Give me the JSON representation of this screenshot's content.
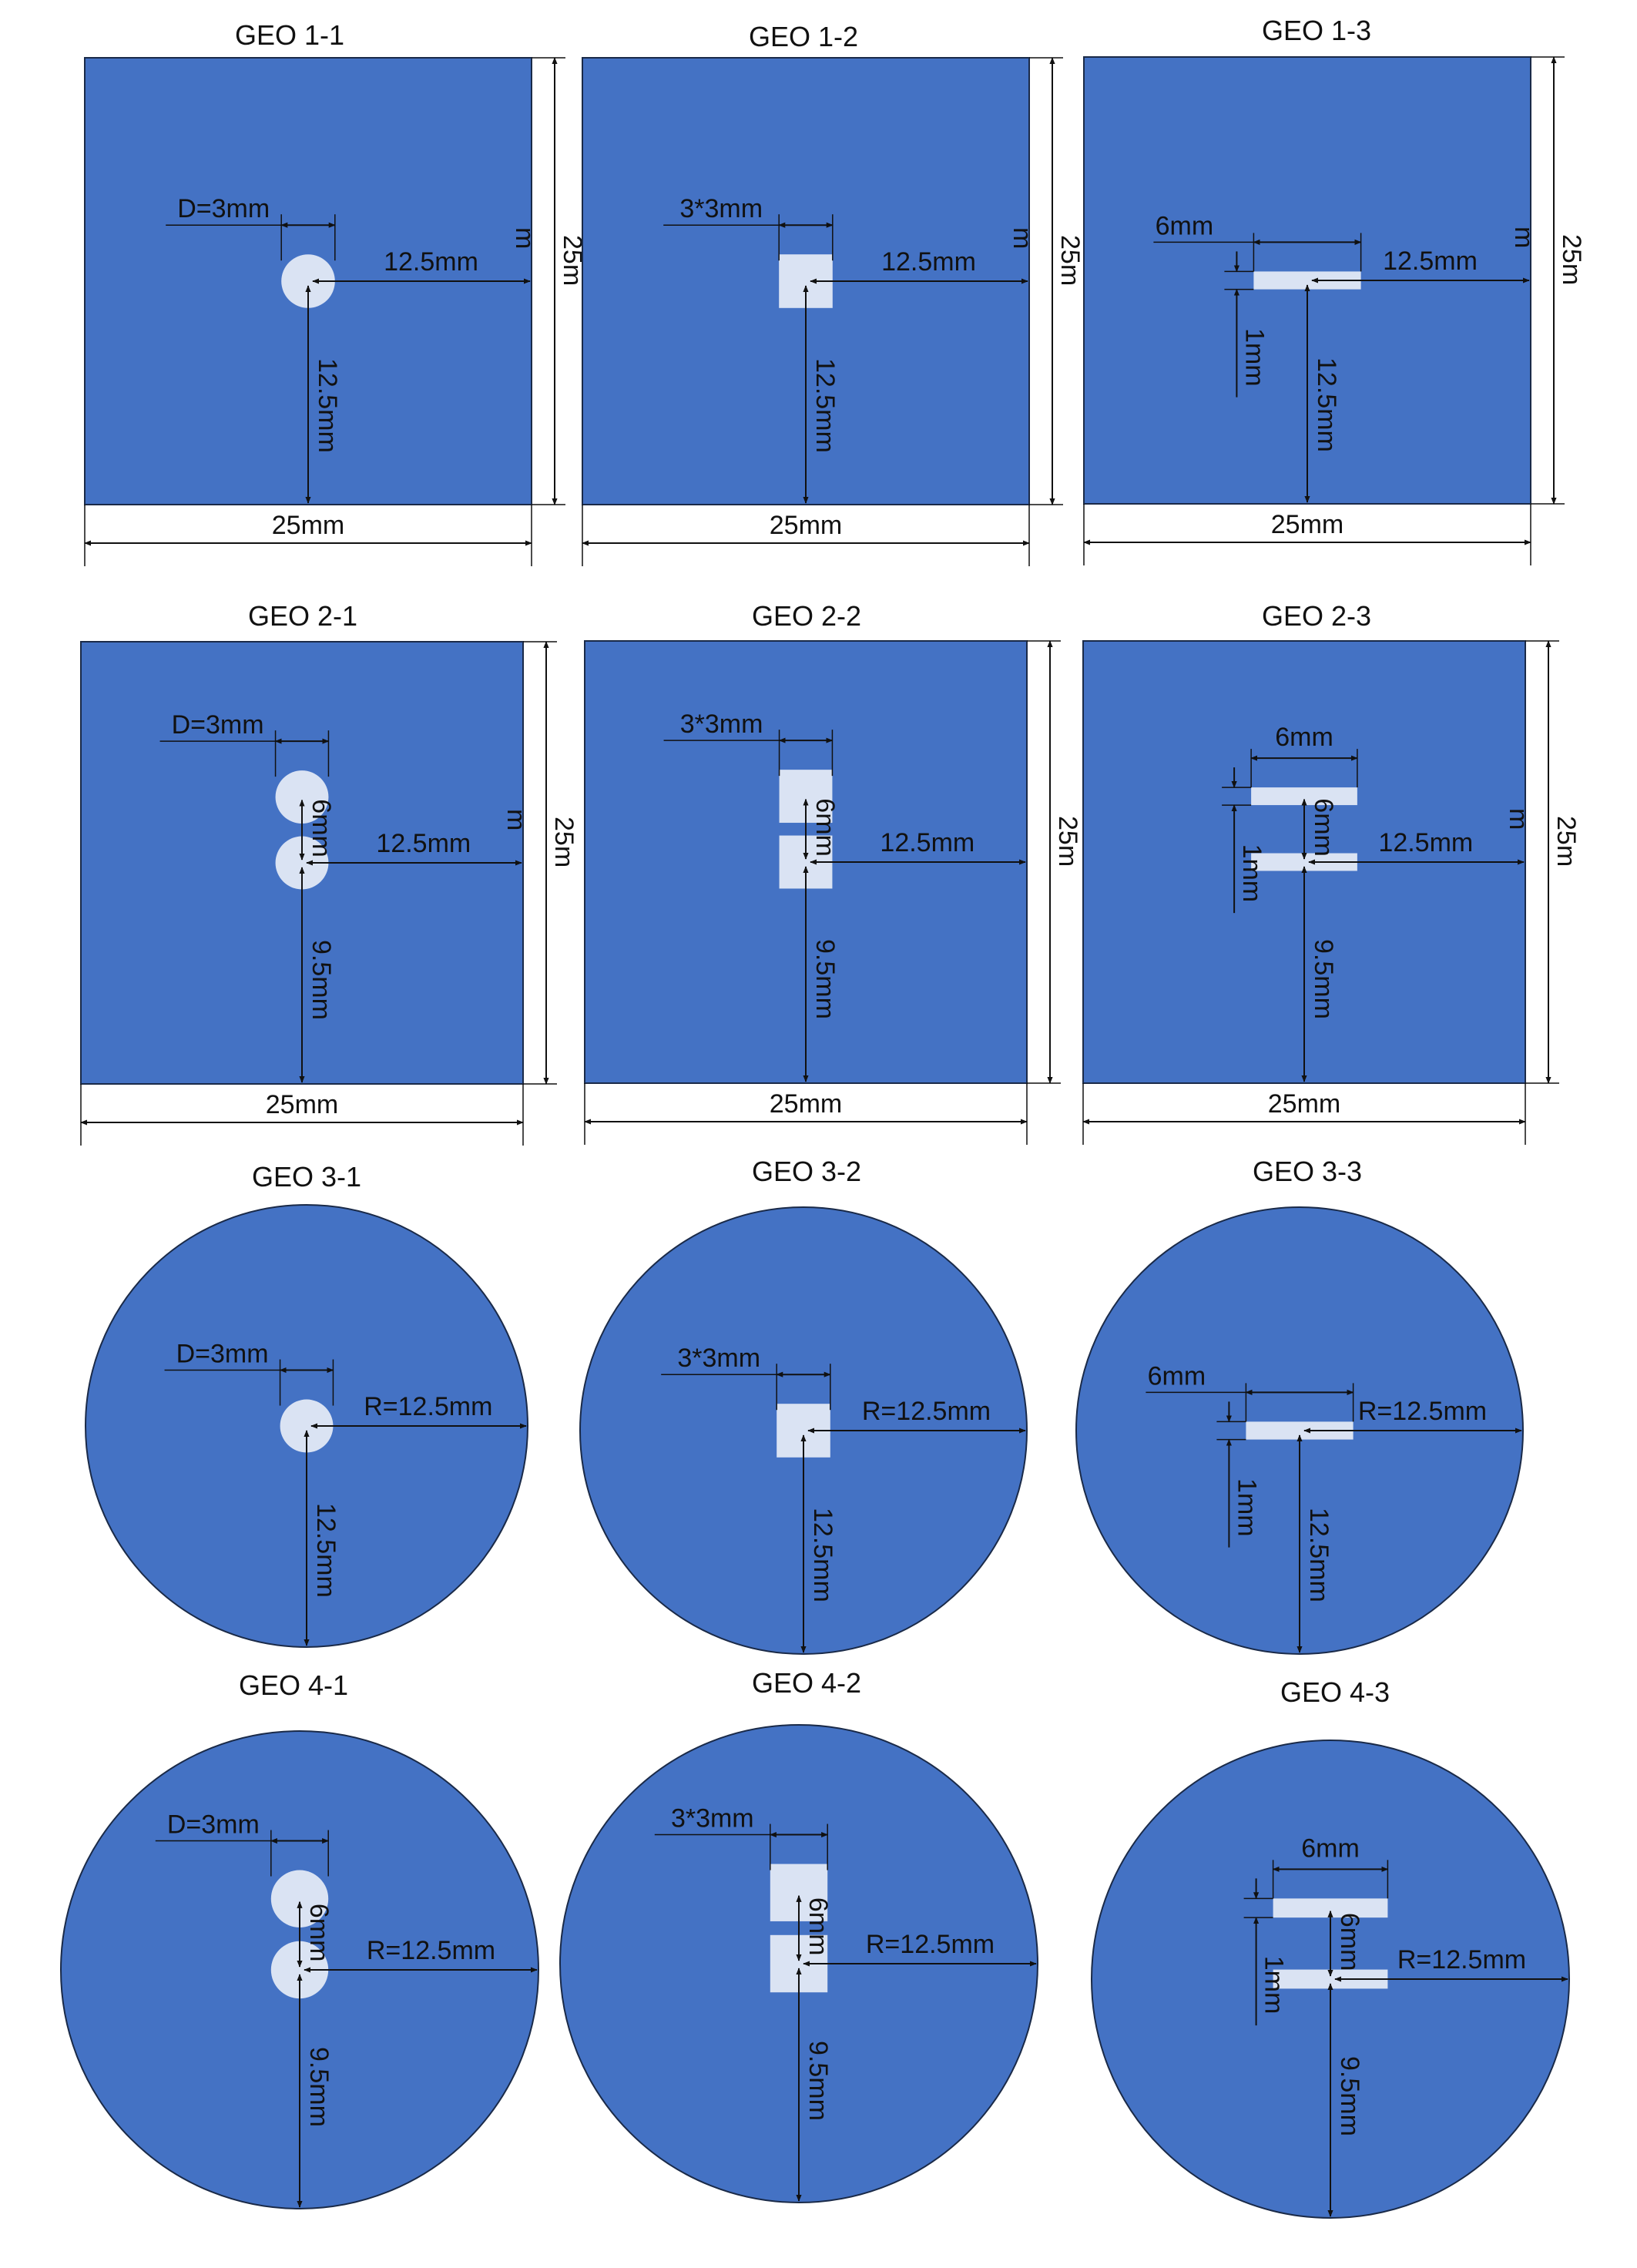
{
  "colors": {
    "specimen": "#4472c4",
    "hole": "#dae3f3",
    "line": "#111111"
  },
  "specimens": [
    {
      "id": "geo-1-1",
      "title": "GEO 1-1",
      "outline": "square",
      "hole": "circle",
      "count": 1,
      "hole_label": "D=3mm",
      "center_label": "12.5mm",
      "down_label": "12.5mm",
      "side_label": "25m",
      "side_extra": "m",
      "bottom_label": "25mm"
    },
    {
      "id": "geo-1-2",
      "title": "GEO 1-2",
      "outline": "square",
      "hole": "square",
      "count": 1,
      "hole_label": "3*3mm",
      "center_label": "12.5mm",
      "down_label": "12.5mm",
      "side_label": "25m",
      "side_extra": "m",
      "bottom_label": "25mm"
    },
    {
      "id": "geo-1-3",
      "title": "GEO 1-3",
      "outline": "square",
      "hole": "slit",
      "count": 1,
      "hole_label": "6mm",
      "thick_label": "1mm",
      "center_label": "12.5mm",
      "down_label": "12.5mm",
      "side_label": "25m",
      "side_extra": "m",
      "bottom_label": "25mm"
    },
    {
      "id": "geo-2-1",
      "title": "GEO 2-1",
      "outline": "square",
      "hole": "circle",
      "count": 2,
      "hole_label": "D=3mm",
      "gap_label": "6mm",
      "center_label": "12.5mm",
      "down_label": "9.5mm",
      "side_label": "25m",
      "side_extra": "m",
      "bottom_label": "25mm"
    },
    {
      "id": "geo-2-2",
      "title": "GEO 2-2",
      "outline": "square",
      "hole": "square",
      "count": 2,
      "hole_label": "3*3mm",
      "gap_label": "6mm",
      "center_label": "12.5mm",
      "down_label": "9.5mm",
      "side_label": "25m",
      "side_extra": "",
      "bottom_label": "25mm"
    },
    {
      "id": "geo-2-3",
      "title": "GEO 2-3",
      "outline": "square",
      "hole": "slit",
      "count": 2,
      "hole_label": "6mm",
      "thick_label": "1mm",
      "gap_label": "6mm",
      "center_label": "12.5mm",
      "down_label": "9.5mm",
      "side_label": "25m",
      "side_extra": "m",
      "bottom_label": "25mm"
    },
    {
      "id": "geo-3-1",
      "title": "GEO 3-1",
      "outline": "circle",
      "hole": "circle",
      "count": 1,
      "hole_label": "D=3mm",
      "center_label": "R=12.5mm",
      "down_label": "12.5mm"
    },
    {
      "id": "geo-3-2",
      "title": "GEO 3-2",
      "outline": "circle",
      "hole": "square",
      "count": 1,
      "hole_label": "3*3mm",
      "center_label": "R=12.5mm",
      "down_label": "12.5mm"
    },
    {
      "id": "geo-3-3",
      "title": "GEO 3-3",
      "outline": "circle",
      "hole": "slit",
      "count": 1,
      "hole_label": "6mm",
      "thick_label": "1mm",
      "center_label": "R=12.5mm",
      "down_label": "12.5mm"
    },
    {
      "id": "geo-4-1",
      "title": "GEO 4-1",
      "outline": "circle",
      "hole": "circle",
      "count": 2,
      "hole_label": "D=3mm",
      "gap_label": "6mm",
      "center_label": "R=12.5mm",
      "down_label": "9.5mm"
    },
    {
      "id": "geo-4-2",
      "title": "GEO 4-2",
      "outline": "circle",
      "hole": "square",
      "count": 2,
      "hole_label": "3*3mm",
      "gap_label": "6mm",
      "center_label": "R=12.5mm",
      "down_label": "9.5mm"
    },
    {
      "id": "geo-4-3",
      "title": "GEO 4-3",
      "outline": "circle",
      "hole": "slit",
      "count": 2,
      "hole_label": "6mm",
      "thick_label": "1mm",
      "gap_label": "6mm",
      "center_label": "R=12.5mm",
      "down_label": "9.5mm"
    }
  ]
}
